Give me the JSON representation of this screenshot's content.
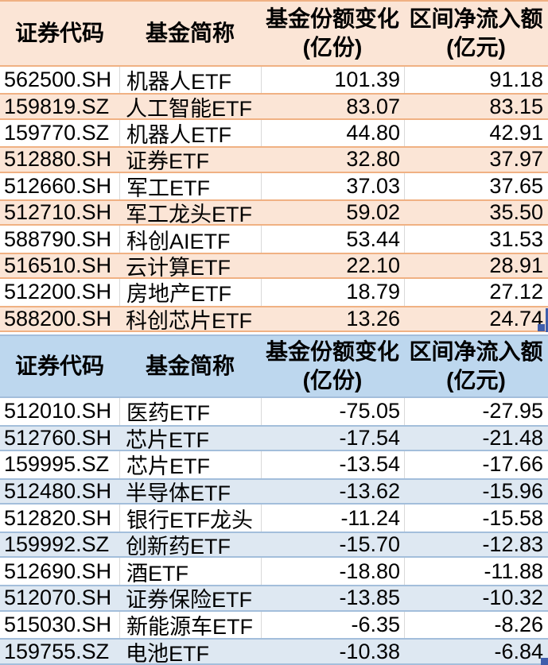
{
  "page": {
    "description": "ETF 基金份额变化与区间净流入/净流出排行表格",
    "background": "#FFFFFF"
  },
  "colors": {
    "inflow_header_fill": "#FBE5D6",
    "inflow_alt_row_fill": "#FBE5D6",
    "inflow_border": "#F0B183",
    "outflow_header_fill": "#BDD7EE",
    "outflow_alt_row_fill": "#DEE8F2",
    "outflow_border": "#A3BEDB",
    "gridline": "#D9D9D9",
    "text": "#000000",
    "selection_handle": "#3F5EAC"
  },
  "selection": {
    "handle_color": "#3F5EAC"
  },
  "tables": [
    {
      "name": "inflow-table",
      "theme": "orange",
      "headers": {
        "code": "证券代码",
        "name": "基金简称",
        "share_change_line1": "基金份额变化",
        "share_change_line2": "(亿份)",
        "net_inflow_line1": "区间净流入额",
        "net_inflow_line2": "(亿元)"
      },
      "rows": [
        {
          "code": "562500.SH",
          "name": "机器人ETF",
          "share_change": "101.39",
          "net_inflow": "91.18"
        },
        {
          "code": "159819.SZ",
          "name": "人工智能ETF",
          "share_change": "83.07",
          "net_inflow": "83.15"
        },
        {
          "code": "159770.SZ",
          "name": "机器人ETF",
          "share_change": "44.80",
          "net_inflow": "42.91"
        },
        {
          "code": "512880.SH",
          "name": "证券ETF",
          "share_change": "32.80",
          "net_inflow": "37.97"
        },
        {
          "code": "512660.SH",
          "name": "军工ETF",
          "share_change": "37.03",
          "net_inflow": "37.65"
        },
        {
          "code": "512710.SH",
          "name": "军工龙头ETF",
          "share_change": "59.02",
          "net_inflow": "35.50"
        },
        {
          "code": "588790.SH",
          "name": "科创AIETF",
          "share_change": "53.44",
          "net_inflow": "31.53"
        },
        {
          "code": "516510.SH",
          "name": "云计算ETF",
          "share_change": "22.10",
          "net_inflow": "28.91"
        },
        {
          "code": "512200.SH",
          "name": "房地产ETF",
          "share_change": "18.79",
          "net_inflow": "27.12"
        },
        {
          "code": "588200.SH",
          "name": "科创芯片ETF",
          "share_change": "13.26",
          "net_inflow": "24.74"
        }
      ]
    },
    {
      "name": "outflow-table",
      "theme": "blue",
      "headers": {
        "code": "证券代码",
        "name": "基金简称",
        "share_change_line1": "基金份额变化",
        "share_change_line2": "(亿份)",
        "net_inflow_line1": "区间净流入额",
        "net_inflow_line2": "(亿元)"
      },
      "rows": [
        {
          "code": "512010.SH",
          "name": "医药ETF",
          "share_change": "-75.05",
          "net_inflow": "-27.95"
        },
        {
          "code": "512760.SH",
          "name": "芯片ETF",
          "share_change": "-17.54",
          "net_inflow": "-21.48"
        },
        {
          "code": "159995.SZ",
          "name": "芯片ETF",
          "share_change": "-13.54",
          "net_inflow": "-17.66"
        },
        {
          "code": "512480.SH",
          "name": "半导体ETF",
          "share_change": "-13.62",
          "net_inflow": "-15.96"
        },
        {
          "code": "512820.SH",
          "name": "银行ETF龙头",
          "share_change": "-11.24",
          "net_inflow": "-15.58"
        },
        {
          "code": "159992.SZ",
          "name": "创新药ETF",
          "share_change": "-15.70",
          "net_inflow": "-12.83"
        },
        {
          "code": "512690.SH",
          "name": "酒ETF",
          "share_change": "-18.80",
          "net_inflow": "-11.88"
        },
        {
          "code": "512070.SH",
          "name": "证券保险ETF",
          "share_change": "-13.85",
          "net_inflow": "-10.32"
        },
        {
          "code": "515030.SH",
          "name": "新能源车ETF",
          "share_change": "-6.35",
          "net_inflow": "-8.26"
        },
        {
          "code": "159755.SZ",
          "name": "电池ETF",
          "share_change": "-10.38",
          "net_inflow": "-6.84"
        }
      ]
    }
  ],
  "chart_data": [
    {
      "type": "table",
      "title": "区间净流入排行",
      "columns": [
        "证券代码",
        "基金简称",
        "基金份额变化(亿份)",
        "区间净流入额(亿元)"
      ],
      "rows": [
        [
          "562500.SH",
          "机器人ETF",
          101.39,
          91.18
        ],
        [
          "159819.SZ",
          "人工智能ETF",
          83.07,
          83.15
        ],
        [
          "159770.SZ",
          "机器人ETF",
          44.8,
          42.91
        ],
        [
          "512880.SH",
          "证券ETF",
          32.8,
          37.97
        ],
        [
          "512660.SH",
          "军工ETF",
          37.03,
          37.65
        ],
        [
          "512710.SH",
          "军工龙头ETF",
          59.02,
          35.5
        ],
        [
          "588790.SH",
          "科创AIETF",
          53.44,
          31.53
        ],
        [
          "516510.SH",
          "云计算ETF",
          22.1,
          28.91
        ],
        [
          "512200.SH",
          "房地产ETF",
          18.79,
          27.12
        ],
        [
          "588200.SH",
          "科创芯片ETF",
          13.26,
          24.74
        ]
      ]
    },
    {
      "type": "table",
      "title": "区间净流出排行",
      "columns": [
        "证券代码",
        "基金简称",
        "基金份额变化(亿份)",
        "区间净流入额(亿元)"
      ],
      "rows": [
        [
          "512010.SH",
          "医药ETF",
          -75.05,
          -27.95
        ],
        [
          "512760.SH",
          "芯片ETF",
          -17.54,
          -21.48
        ],
        [
          "159995.SZ",
          "芯片ETF",
          -13.54,
          -17.66
        ],
        [
          "512480.SH",
          "半导体ETF",
          -13.62,
          -15.96
        ],
        [
          "512820.SH",
          "银行ETF龙头",
          -11.24,
          -15.58
        ],
        [
          "159992.SZ",
          "创新药ETF",
          -15.7,
          -12.83
        ],
        [
          "512690.SH",
          "酒ETF",
          -18.8,
          -11.88
        ],
        [
          "512070.SH",
          "证券保险ETF",
          -13.85,
          -10.32
        ],
        [
          "515030.SH",
          "新能源车ETF",
          -6.35,
          -8.26
        ],
        [
          "159755.SZ",
          "电池ETF",
          -10.38,
          -6.84
        ]
      ]
    }
  ]
}
